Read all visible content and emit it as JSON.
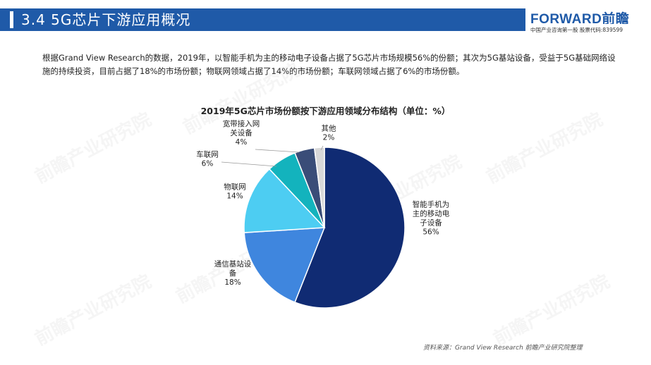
{
  "header": {
    "title": "3.4  5G芯片下游应用概况",
    "logo_main": "FORWARD前瞻",
    "logo_sub": "中国产业咨询第一股 股票代码:839599"
  },
  "intro_text": "根据Grand View Research的数据，2019年，以智能手机为主的移动电子设备占据了5G芯片市场规模56%的份额；其次为5G基站设备，受益于5G基础网络设施的持续投资，目前占据了18%的市场份额；物联网领域占据了14%的市场份额；车联网领域占据了6%的市场份额。",
  "watermark_text": "前瞻产业研究院",
  "source_text": "资料来源：Grand View Research 前瞻产业研究院整理",
  "chart_data": {
    "type": "pie",
    "title": "2019年5G芯片市场份额按下游应用领域分布结构（单位：%）",
    "start_angle_deg": 0,
    "direction": "clockwise",
    "slices": [
      {
        "label_lines": [
          "智能手机为",
          "主的移动电",
          "子设备",
          "56%"
        ],
        "value": 56,
        "color": "#102b73"
      },
      {
        "label_lines": [
          "通信基站设",
          "备",
          "18%"
        ],
        "value": 18,
        "color": "#3f86de"
      },
      {
        "label_lines": [
          "物联网",
          "14%"
        ],
        "value": 14,
        "color": "#4dcdf2"
      },
      {
        "label_lines": [
          "车联网",
          "6%"
        ],
        "value": 6,
        "color": "#13b3bd"
      },
      {
        "label_lines": [
          "宽带接入网",
          "关设备",
          "4%"
        ],
        "value": 4,
        "color": "#3a4d78"
      },
      {
        "label_lines": [
          "其他",
          "2%"
        ],
        "value": 2,
        "color": "#d8d8d8"
      }
    ]
  }
}
